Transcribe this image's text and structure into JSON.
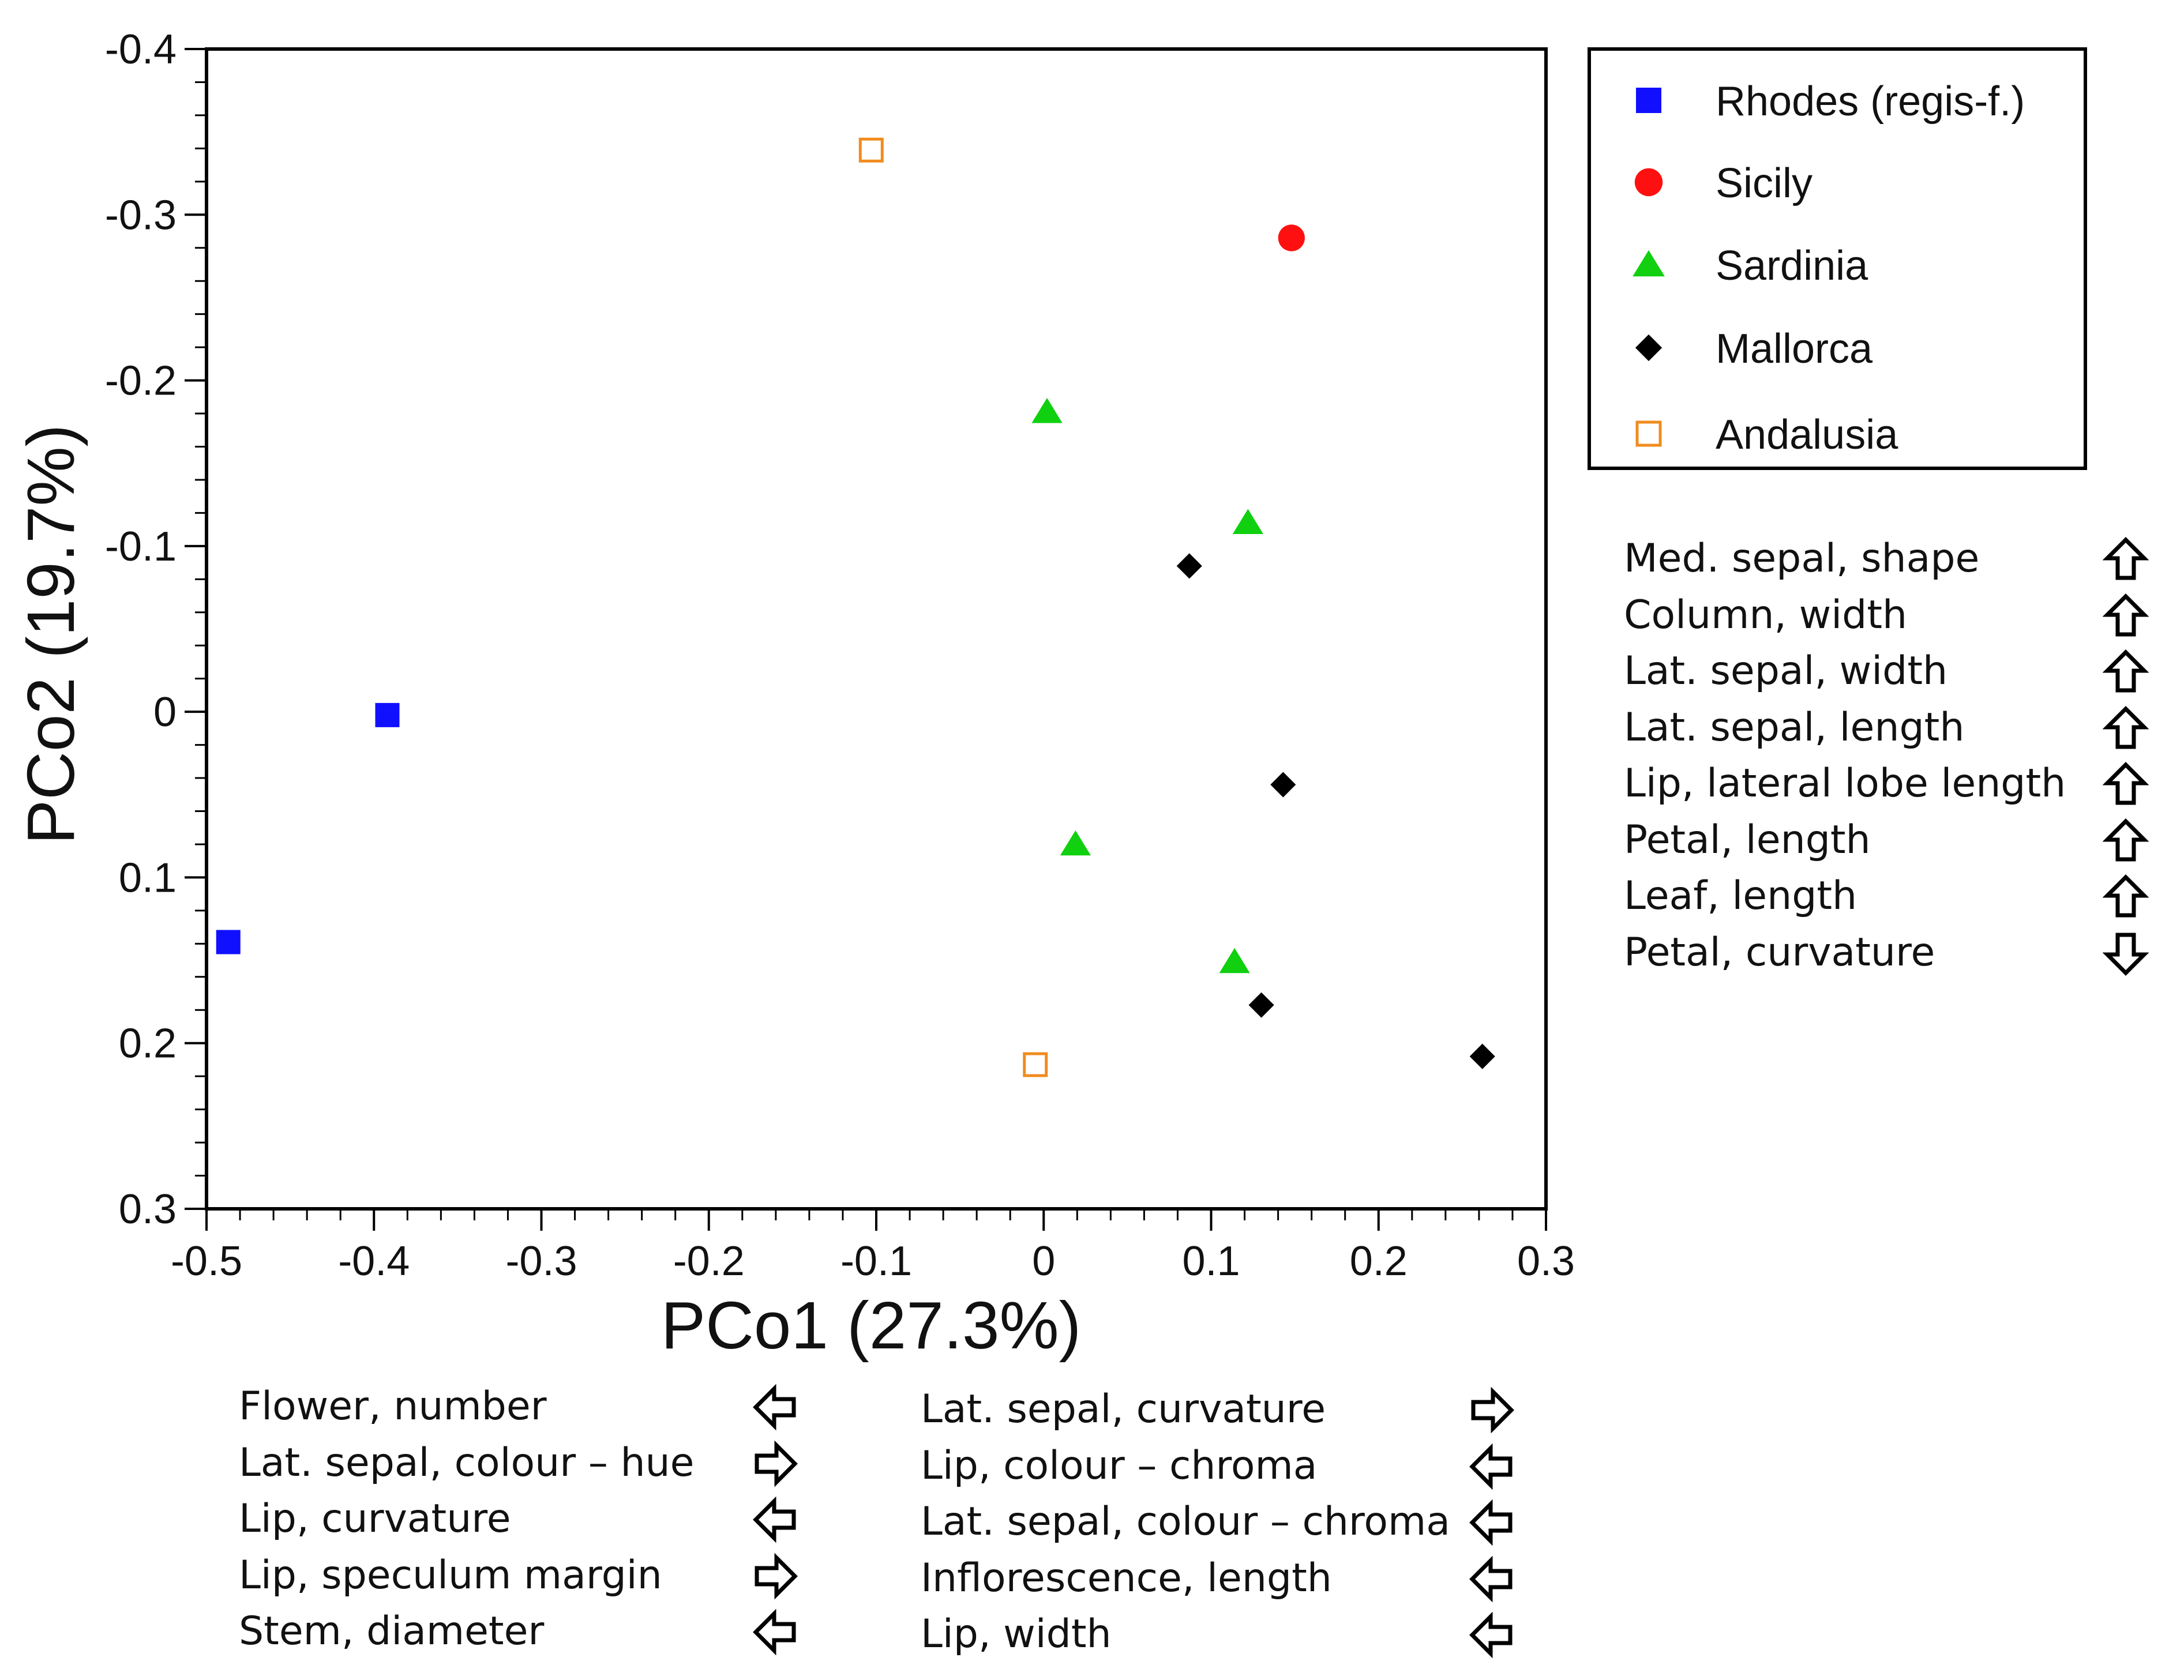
{
  "chart_data": {
    "type": "scatter",
    "xlabel": "PCo1 (27.3%)",
    "ylabel": "PCo2 (19.7%)",
    "xlim": [
      -0.5,
      0.3
    ],
    "ylim": [
      -0.4,
      0.3
    ],
    "y_inverted": true,
    "x_ticks": [
      "-0.5",
      "-0.4",
      "-0.3",
      "-0.2",
      "-0.1",
      "0",
      "0.1",
      "0.2",
      "0.3"
    ],
    "x_tick_values": [
      -0.5,
      -0.4,
      -0.3,
      -0.2,
      -0.1,
      0,
      0.1,
      0.2,
      0.3
    ],
    "y_ticks": [
      "-0.4",
      "-0.3",
      "-0.2",
      "-0.1",
      "0",
      "0.1",
      "0.2",
      "0.3"
    ],
    "y_tick_values": [
      -0.4,
      -0.3,
      -0.2,
      -0.1,
      0,
      0.1,
      0.2,
      0.3
    ],
    "minor_ticks_per_major": 4,
    "grid": false,
    "legend_placement": "right",
    "series": [
      {
        "name": "Rhodes (regis-f.)",
        "marker": "square",
        "color": "#1010ff",
        "filled": true,
        "points": [
          {
            "x": -0.392,
            "y": 0.002
          },
          {
            "x": -0.487,
            "y": 0.139
          }
        ]
      },
      {
        "name": "Sicily",
        "marker": "circle",
        "color": "#ff1010",
        "filled": true,
        "points": [
          {
            "x": 0.148,
            "y": -0.286
          }
        ]
      },
      {
        "name": "Sardinia",
        "marker": "triangle",
        "color": "#10d010",
        "filled": true,
        "points": [
          {
            "x": 0.002,
            "y": -0.181
          },
          {
            "x": 0.122,
            "y": -0.114
          },
          {
            "x": 0.019,
            "y": 0.08
          },
          {
            "x": 0.114,
            "y": 0.151
          }
        ]
      },
      {
        "name": "Mallorca",
        "marker": "diamond",
        "color": "#000000",
        "filled": true,
        "points": [
          {
            "x": 0.087,
            "y": -0.088
          },
          {
            "x": 0.143,
            "y": 0.044
          },
          {
            "x": 0.13,
            "y": 0.177
          },
          {
            "x": 0.262,
            "y": 0.208
          }
        ]
      },
      {
        "name": "Andalusia",
        "marker": "square",
        "color": "#f08c1e",
        "filled": false,
        "points": [
          {
            "x": -0.103,
            "y": -0.339
          },
          {
            "x": -0.005,
            "y": 0.213
          }
        ]
      }
    ]
  },
  "variables": {
    "pco2": [
      {
        "label": "Med. sepal, shape",
        "direction": "up"
      },
      {
        "label": "Column, width",
        "direction": "up"
      },
      {
        "label": "Lat. sepal, width",
        "direction": "up"
      },
      {
        "label": "Lat. sepal, length",
        "direction": "up"
      },
      {
        "label": "Lip, lateral lobe length",
        "direction": "up"
      },
      {
        "label": "Petal, length",
        "direction": "up"
      },
      {
        "label": "Leaf, length",
        "direction": "up"
      },
      {
        "label": "Petal, curvature",
        "direction": "down"
      }
    ],
    "pco1_left": [
      {
        "label": "Flower, number",
        "direction": "left"
      },
      {
        "label": "Lat. sepal, colour – hue",
        "direction": "right"
      },
      {
        "label": "Lip, curvature",
        "direction": "left"
      },
      {
        "label": "Lip, speculum margin",
        "direction": "right"
      },
      {
        "label": "Stem, diameter",
        "direction": "left"
      }
    ],
    "pco1_right": [
      {
        "label": "Lat. sepal, curvature",
        "direction": "right"
      },
      {
        "label": "Lip, colour – chroma",
        "direction": "left"
      },
      {
        "label": "Lat. sepal, colour – chroma",
        "direction": "left"
      },
      {
        "label": "Inflorescence, length",
        "direction": "left"
      },
      {
        "label": "Lip, width",
        "direction": "left"
      }
    ]
  }
}
